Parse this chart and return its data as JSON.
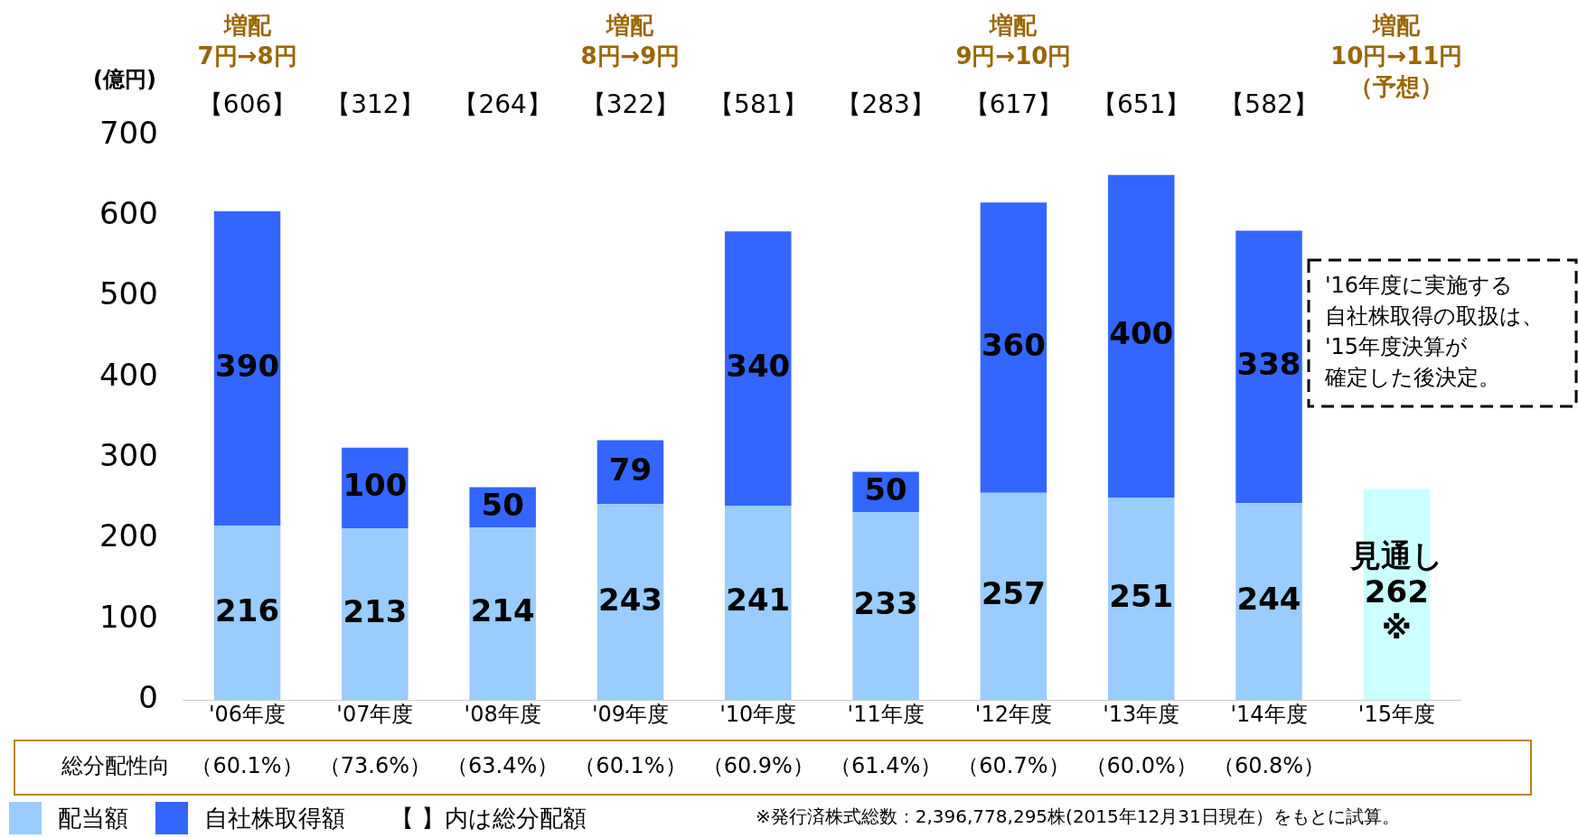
{
  "chart_data": {
    "type": "bar",
    "stacked": true,
    "ylabel": "(億円)",
    "categories": [
      "'06年度",
      "'07年度",
      "'08年度",
      "'09年度",
      "'10年度",
      "'11年度",
      "'12年度",
      "'13年度",
      "'14年度",
      "'15年度"
    ],
    "series": [
      {
        "name": "配当額",
        "color": "#99ccff",
        "colors": [
          "#99ccff",
          "#99ccff",
          "#99ccff",
          "#99ccff",
          "#99ccff",
          "#99ccff",
          "#99ccff",
          "#99ccff",
          "#99ccff",
          "#ccffff"
        ],
        "values": [
          216,
          213,
          214,
          243,
          241,
          233,
          257,
          251,
          244,
          262
        ],
        "value_labels": [
          "216",
          "213",
          "214",
          "243",
          "241",
          "233",
          "257",
          "251",
          "244",
          "見通し\n262\n※"
        ]
      },
      {
        "name": "自社株取得額",
        "color": "#3366ff",
        "values": [
          390,
          100,
          50,
          79,
          340,
          50,
          360,
          400,
          338,
          null
        ],
        "value_labels": [
          "390",
          "100",
          "50",
          "79",
          "340",
          "50",
          "360",
          "400",
          "338",
          null
        ]
      }
    ],
    "ylim": [
      0,
      700
    ],
    "yticks": [
      0,
      100,
      200,
      300,
      400,
      500,
      600,
      700
    ],
    "grid": false,
    "legend": "bottom left",
    "annotations": [
      "増配",
      "増配",
      "増配",
      "増配",
      "7円→8円",
      "8円→9円",
      "9円→10円",
      "10円→11円",
      "（予想）",
      "【606】",
      "【312】",
      "【264】",
      "【322】",
      "【581】",
      "【283】",
      "【617】",
      "【651】",
      "【582】",
      "'16年度に実施する",
      "自社株取得の取扱は、",
      "'15年度決算が",
      "確定した後決定。",
      "総分配性向",
      "（60.1%）",
      "（73.6%）",
      "（63.4%）",
      "（60.1%）",
      "（60.9%）",
      "（61.4%）",
      "（60.7%）",
      "（60.0%）",
      "（60.8%）",
      "【 】内は総分配額",
      "※発行済株式総数：2,396,778,295株(2015年12月31日現在）をもとに試算。"
    ]
  }
}
